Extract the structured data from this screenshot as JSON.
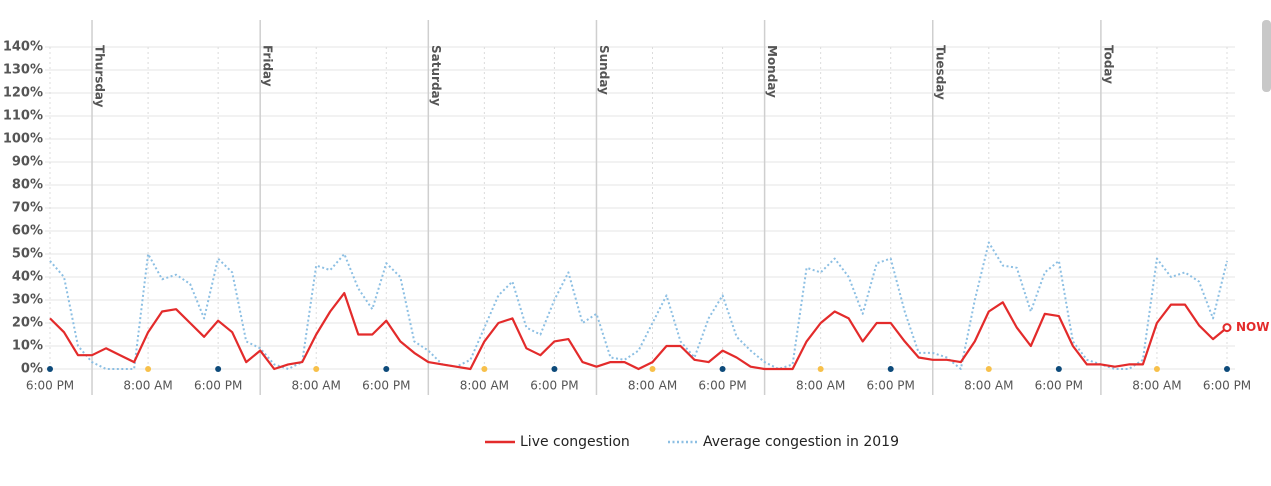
{
  "chart_data": {
    "type": "line",
    "x": [
      0,
      2,
      4,
      6,
      8,
      10,
      12,
      14,
      16,
      18,
      20,
      22,
      24,
      26,
      28,
      30,
      32,
      34,
      36,
      38,
      40,
      42,
      44,
      46,
      48,
      50,
      52,
      54,
      56,
      58,
      60,
      62,
      64,
      66,
      68,
      70,
      72,
      74,
      76,
      78,
      80,
      82,
      84,
      86,
      88,
      90,
      92,
      94,
      96,
      98,
      100,
      102,
      104,
      106,
      108,
      110,
      112,
      114,
      116,
      118,
      120,
      122,
      124,
      126,
      128,
      130,
      132,
      134,
      136,
      138,
      140,
      142,
      144,
      146,
      148,
      150,
      152,
      154,
      156,
      158,
      160,
      162,
      164,
      166,
      168
    ],
    "series": [
      {
        "name": "Live congestion",
        "color": "#e32b2b",
        "style": "solid",
        "values": [
          22,
          16,
          6,
          6,
          9,
          6,
          3,
          16,
          25,
          26,
          20,
          14,
          21,
          16,
          3,
          8,
          0,
          2,
          3,
          15,
          25,
          33,
          15,
          15,
          21,
          12,
          7,
          3,
          2,
          1,
          0,
          12,
          20,
          22,
          9,
          6,
          12,
          13,
          3,
          1,
          3,
          3,
          0,
          3,
          10,
          10,
          4,
          3,
          8,
          5,
          1,
          0,
          0,
          0,
          12,
          20,
          25,
          22,
          12,
          20,
          20,
          12,
          5,
          4,
          4,
          3,
          12,
          25,
          29,
          18,
          10,
          24,
          23,
          10,
          2,
          2,
          1,
          2,
          2,
          20,
          28,
          28,
          19,
          13,
          18
        ]
      },
      {
        "name": "Average congestion in 2019",
        "color": "#8cbfe3",
        "style": "dotted",
        "values": [
          47,
          40,
          10,
          3,
          0,
          0,
          0,
          50,
          39,
          41,
          37,
          22,
          48,
          42,
          12,
          9,
          2,
          0,
          3,
          45,
          43,
          50,
          35,
          26,
          46,
          40,
          12,
          8,
          2,
          1,
          4,
          18,
          32,
          38,
          18,
          15,
          30,
          42,
          20,
          24,
          5,
          4,
          8,
          20,
          32,
          12,
          5,
          22,
          32,
          14,
          8,
          3,
          0,
          2,
          44,
          42,
          48,
          40,
          24,
          46,
          48,
          25,
          7,
          7,
          5,
          0,
          30,
          55,
          45,
          44,
          25,
          42,
          47,
          12,
          4,
          2,
          0,
          0,
          4,
          48,
          40,
          42,
          38,
          22,
          47
        ]
      }
    ],
    "xlim": [
      0,
      168
    ],
    "xticks": [
      {
        "value": 0,
        "label": "6:00 PM",
        "color": "#0d4a7a"
      },
      {
        "value": 14,
        "label": "8:00 AM",
        "color": "#f7c04a"
      },
      {
        "value": 24,
        "label": "6:00 PM",
        "color": "#0d4a7a"
      },
      {
        "value": 38,
        "label": "8:00 AM",
        "color": "#f7c04a"
      },
      {
        "value": 48,
        "label": "6:00 PM",
        "color": "#0d4a7a"
      },
      {
        "value": 62,
        "label": "8:00 AM",
        "color": "#f7c04a"
      },
      {
        "value": 72,
        "label": "6:00 PM",
        "color": "#0d4a7a"
      },
      {
        "value": 86,
        "label": "8:00 AM",
        "color": "#f7c04a"
      },
      {
        "value": 96,
        "label": "6:00 PM",
        "color": "#0d4a7a"
      },
      {
        "value": 110,
        "label": "8:00 AM",
        "color": "#f7c04a"
      },
      {
        "value": 120,
        "label": "6:00 PM",
        "color": "#0d4a7a"
      },
      {
        "value": 134,
        "label": "8:00 AM",
        "color": "#f7c04a"
      },
      {
        "value": 144,
        "label": "6:00 PM",
        "color": "#0d4a7a"
      },
      {
        "value": 158,
        "label": "8:00 AM",
        "color": "#f7c04a"
      },
      {
        "value": 168,
        "label": "6:00 PM",
        "color": "#0d4a7a"
      }
    ],
    "day_markers": [
      {
        "value": 6,
        "label": "Thursday"
      },
      {
        "value": 30,
        "label": "Friday"
      },
      {
        "value": 54,
        "label": "Saturday"
      },
      {
        "value": 78,
        "label": "Sunday"
      },
      {
        "value": 102,
        "label": "Monday"
      },
      {
        "value": 126,
        "label": "Tuesday"
      },
      {
        "value": 150,
        "label": "Today"
      }
    ],
    "ylim": [
      0,
      140
    ],
    "yticks": [
      {
        "value": 0,
        "label": "0%"
      },
      {
        "value": 10,
        "label": "10%"
      },
      {
        "value": 20,
        "label": "20%"
      },
      {
        "value": 30,
        "label": "30%"
      },
      {
        "value": 40,
        "label": "40%"
      },
      {
        "value": 50,
        "label": "50%"
      },
      {
        "value": 60,
        "label": "60%"
      },
      {
        "value": 70,
        "label": "70%"
      },
      {
        "value": 80,
        "label": "80%"
      },
      {
        "value": 90,
        "label": "90%"
      },
      {
        "value": 100,
        "label": "100%"
      },
      {
        "value": 110,
        "label": "110%"
      },
      {
        "value": 120,
        "label": "120%"
      },
      {
        "value": 130,
        "label": "130%"
      },
      {
        "value": 140,
        "label": "140%"
      }
    ],
    "annotation": "NOW",
    "grid": true,
    "legend": "bottom"
  }
}
